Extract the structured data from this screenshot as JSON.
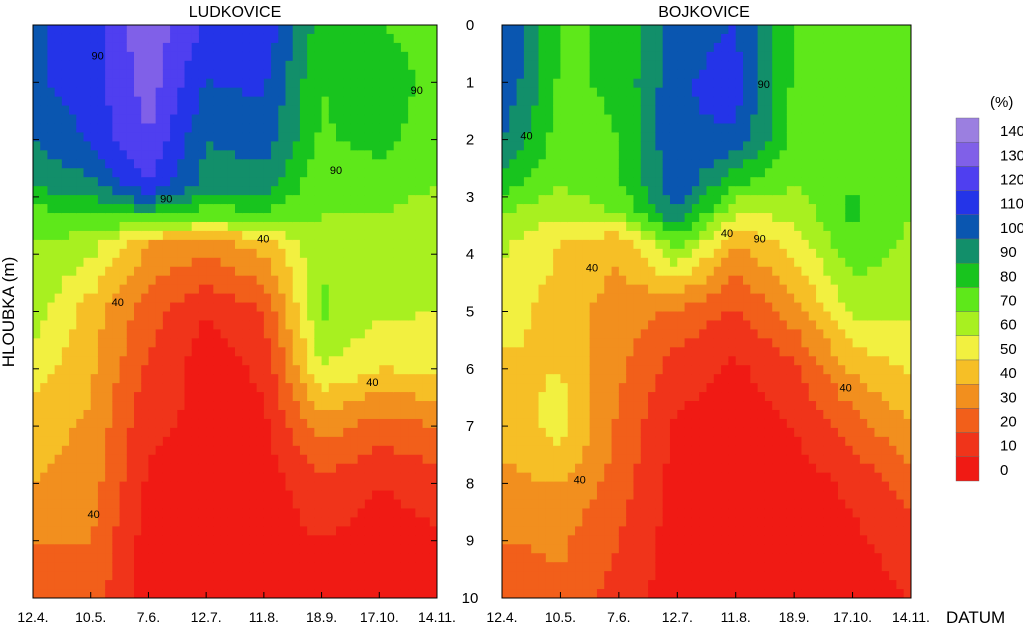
{
  "chart_data": {
    "type": "heatmap",
    "ylabel": "HLOUBKA (m)",
    "xlabel": "DATUM",
    "y_ticks": [
      "0",
      "1",
      "2",
      "3",
      "4",
      "5",
      "6",
      "7",
      "8",
      "9",
      "10"
    ],
    "ylim": [
      0,
      10
    ],
    "x_ticks": [
      "12.4.",
      "10.5.",
      "7.6.",
      "12.7.",
      "11.8.",
      "18.9.",
      "17.10.",
      "14.11."
    ],
    "legend": {
      "unit": "(%)",
      "levels": [
        "140",
        "130",
        "120",
        "110",
        "100",
        "90",
        "80",
        "70",
        "60",
        "50",
        "40",
        "30",
        "20",
        "10",
        "0"
      ],
      "colors": [
        "#9b7fe0",
        "#8060e8",
        "#4f3ff0",
        "#2434e8",
        "#0a56b0",
        "#128f6a",
        "#18c41e",
        "#5ee81a",
        "#a8f020",
        "#f2f040",
        "#f6bf26",
        "#f28f1e",
        "#f25f1a",
        "#f0341a",
        "#f01a14"
      ]
    },
    "panels": [
      {
        "title": "LUDKOVICE",
        "contour_labels": [
          "90",
          "90",
          "40",
          "40",
          "40",
          "40",
          "90",
          "90"
        ],
        "profiles": [
          {
            "date": "12.4.",
            "depths": [
              0,
              1,
              2,
              2.8,
              3.3,
              3.8,
              5,
              6,
              7,
              8,
              9,
              10
            ],
            "values": [
              108,
              108,
              100,
              92,
              75,
              70,
              65,
              55,
              45,
              40,
              30,
              20
            ]
          },
          {
            "date": "10.5.",
            "depths": [
              0,
              1,
              2,
              2.8,
              3.3,
              3.8,
              5,
              6,
              7,
              8,
              9,
              10
            ],
            "values": [
              115,
              115,
              112,
              96,
              82,
              65,
              45,
              42,
              38,
              35,
              30,
              25
            ]
          },
          {
            "date": "7.6.",
            "depths": [
              0,
              1,
              2,
              2.8,
              3.3,
              3.8,
              5,
              6,
              7,
              8,
              9,
              10
            ],
            "values": [
              138,
              135,
              130,
              120,
              85,
              40,
              25,
              18,
              12,
              8,
              5,
              5
            ]
          },
          {
            "date": "12.7.",
            "depths": [
              0,
              1,
              2,
              2.8,
              3.3,
              3.8,
              5,
              6,
              7,
              8,
              9,
              10
            ],
            "values": [
              118,
              110,
              100,
              95,
              75,
              35,
              10,
              5,
              8,
              5,
              5,
              5
            ]
          },
          {
            "date": "11.8.",
            "depths": [
              0,
              1,
              2,
              2.8,
              3.3,
              3.8,
              5,
              6,
              7,
              8,
              9,
              10
            ],
            "values": [
              118,
              112,
              105,
              95,
              78,
              45,
              20,
              12,
              8,
              5,
              5,
              5
            ]
          },
          {
            "date": "18.9.",
            "depths": [
              0,
              1,
              2,
              2.8,
              3.3,
              3.8,
              5,
              6,
              7,
              8,
              9,
              10
            ],
            "values": [
              85,
              80,
              78,
              72,
              70,
              68,
              72,
              60,
              35,
              18,
              10,
              8
            ]
          },
          {
            "date": "17.10.",
            "depths": [
              0,
              1,
              2,
              2.8,
              3.3,
              3.8,
              5,
              6,
              7,
              8,
              9,
              10
            ],
            "values": [
              80,
              88,
              85,
              72,
              70,
              66,
              62,
              50,
              25,
              10,
              5,
              5
            ]
          },
          {
            "date": "14.11.",
            "depths": [
              0,
              1,
              2,
              2.8,
              3.3,
              3.8,
              5,
              6,
              7,
              8,
              9,
              10
            ],
            "values": [
              75,
              75,
              72,
              70,
              68,
              66,
              60,
              52,
              30,
              15,
              8,
              8
            ]
          }
        ]
      },
      {
        "title": "BOJKOVICE",
        "contour_labels": [
          "90",
          "90",
          "40",
          "40",
          "40",
          "40",
          "40"
        ],
        "profiles": [
          {
            "date": "12.4.",
            "depths": [
              0,
              1,
              2,
              2.8,
              3.3,
              3.8,
              5,
              6,
              7,
              8,
              9,
              10
            ],
            "values": [
              112,
              110,
              100,
              85,
              70,
              62,
              55,
              48,
              42,
              38,
              30,
              20
            ]
          },
          {
            "date": "10.5.",
            "depths": [
              0,
              1,
              2,
              2.8,
              3.3,
              3.8,
              5,
              6,
              7,
              8,
              9,
              10
            ],
            "values": [
              78,
              78,
              75,
              70,
              62,
              50,
              45,
              50,
              55,
              40,
              32,
              28
            ]
          },
          {
            "date": "7.6.",
            "depths": [
              0,
              1,
              2,
              2.8,
              3.3,
              3.8,
              5,
              6,
              7,
              8,
              9,
              10
            ],
            "values": [
              82,
              82,
              80,
              78,
              70,
              42,
              35,
              32,
              28,
              25,
              20,
              15
            ]
          },
          {
            "date": "12.7.",
            "depths": [
              0,
              1,
              2,
              2.8,
              3.3,
              3.8,
              5,
              6,
              7,
              8,
              9,
              10
            ],
            "values": [
              105,
              108,
              110,
              108,
              100,
              75,
              28,
              15,
              8,
              5,
              5,
              5
            ]
          },
          {
            "date": "11.8.",
            "depths": [
              0,
              1,
              2,
              2.8,
              3.3,
              3.8,
              5,
              6,
              7,
              8,
              9,
              10
            ],
            "values": [
              110,
              115,
              108,
              80,
              60,
              40,
              18,
              8,
              5,
              5,
              5,
              5
            ]
          },
          {
            "date": "18.9.",
            "depths": [
              0,
              1,
              2,
              2.8,
              3.3,
              3.8,
              5,
              6,
              7,
              8,
              9,
              10
            ],
            "values": [
              80,
              78,
              76,
              70,
              62,
              55,
              35,
              18,
              10,
              5,
              5,
              5
            ]
          },
          {
            "date": "17.10.",
            "depths": [
              0,
              1,
              2,
              2.8,
              3.3,
              3.8,
              5,
              6,
              7,
              8,
              9,
              10
            ],
            "values": [
              72,
              72,
              75,
              80,
              82,
              78,
              62,
              42,
              25,
              12,
              8,
              5
            ]
          },
          {
            "date": "14.11.",
            "depths": [
              0,
              1,
              2,
              2.8,
              3.3,
              3.8,
              5,
              6,
              7,
              8,
              9,
              10
            ],
            "values": [
              70,
              70,
              70,
              70,
              70,
              68,
              62,
              52,
              40,
              25,
              15,
              10
            ]
          }
        ]
      }
    ]
  }
}
